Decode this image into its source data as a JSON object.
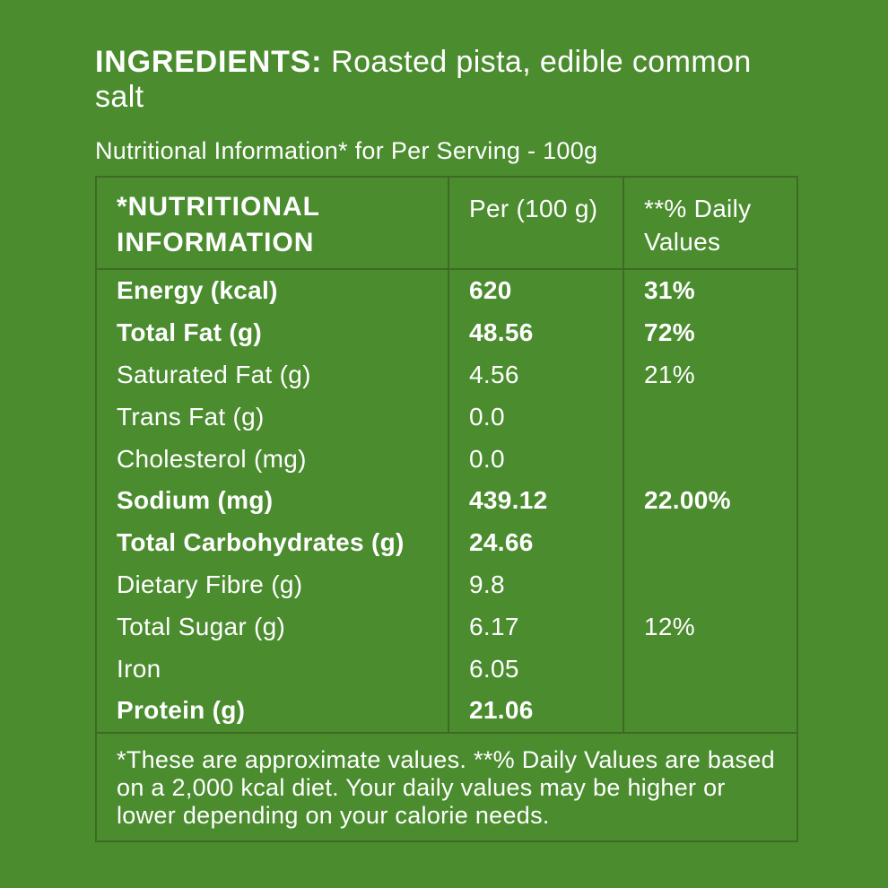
{
  "colors": {
    "background": "#4b8c2f",
    "table_border": "#3e6a24",
    "text": "#ffffff"
  },
  "ingredients": {
    "label": "INGREDIENTS:",
    "text": " Roasted pista, edible common salt"
  },
  "subtitle": "Nutritional Information* for Per Serving - 100g",
  "table": {
    "header": {
      "col1": "*NUTRITIONAL INFORMATION",
      "col2": "Per (100 g)",
      "col3": "**% Daily Values"
    },
    "rows": [
      {
        "name": "Energy (kcal)",
        "per": "620",
        "dv": "31%",
        "bold": true
      },
      {
        "name": "Total Fat (g)",
        "per": "48.56",
        "dv": "72%",
        "bold": true
      },
      {
        "name": "Saturated Fat (g)",
        "per": "4.56",
        "dv": "21%",
        "bold": false
      },
      {
        "name": "Trans Fat (g)",
        "per": "0.0",
        "dv": "",
        "bold": false
      },
      {
        "name": "Cholesterol (mg)",
        "per": "0.0",
        "dv": "",
        "bold": false
      },
      {
        "name": "Sodium (mg)",
        "per": "439.12",
        "dv": "22.00%",
        "bold": true
      },
      {
        "name": "Total Carbohydrates (g)",
        "per": "24.66",
        "dv": "",
        "bold": true
      },
      {
        "name": "Dietary Fibre (g)",
        "per": "9.8",
        "dv": "",
        "bold": false
      },
      {
        "name": "Total Sugar (g)",
        "per": "6.17",
        "dv": "12%",
        "bold": false
      },
      {
        "name": "Iron",
        "per": "6.05",
        "dv": "",
        "bold": false
      },
      {
        "name": "Protein (g)",
        "per": "21.06",
        "dv": "",
        "bold": true
      }
    ],
    "footnote": "*These are approximate values. **% Daily Values are based on a 2,000 kcal diet. Your daily values may be higher or lower depending on your calorie needs."
  }
}
